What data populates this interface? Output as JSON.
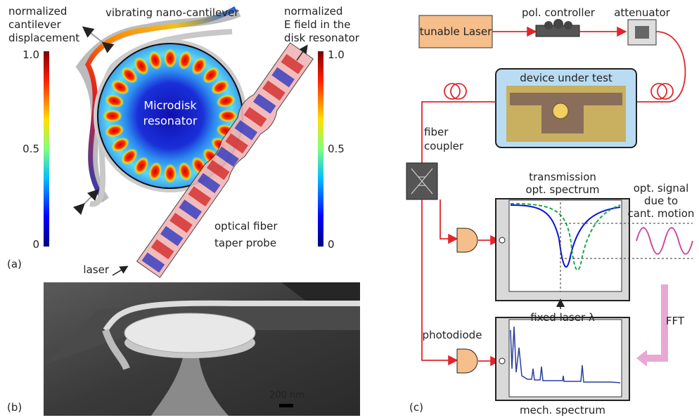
{
  "panel_a": {
    "label": "(a)",
    "left_colorbar_title": [
      "normalized",
      "cantilever",
      "displacement"
    ],
    "cantilever_title": "vibrating nano-cantilever",
    "right_colorbar_title": [
      "normalized",
      "E field in the",
      "disk resonator"
    ],
    "left_colorbar_ticks": [
      "1.0",
      "0.5",
      "0"
    ],
    "right_colorbar_ticks": [
      "1.0",
      "0.5",
      "0"
    ],
    "disk_label": [
      "Microdisk",
      "resonator"
    ],
    "laser_label": "laser",
    "fiber_label": [
      "optical fiber",
      "taper probe"
    ]
  },
  "panel_b": {
    "label": "(b)",
    "scale_bar": "200 nm"
  },
  "panel_c": {
    "label": "(c)",
    "laser": "tunable Laser",
    "pol_controller": "pol. controller",
    "attenuator": "attenuator",
    "dut": "device under test",
    "fiber_coupler": [
      "fiber",
      "coupler"
    ],
    "transmission": [
      "transmission",
      "opt. spectrum"
    ],
    "opt_signal": [
      "opt. signal",
      "due to",
      "cant. motion"
    ],
    "fixed_laser": "fixed laser λ",
    "fft": "FFT",
    "photodiode": "photodiode",
    "mech_spectrum": "mech. spectrum"
  }
}
